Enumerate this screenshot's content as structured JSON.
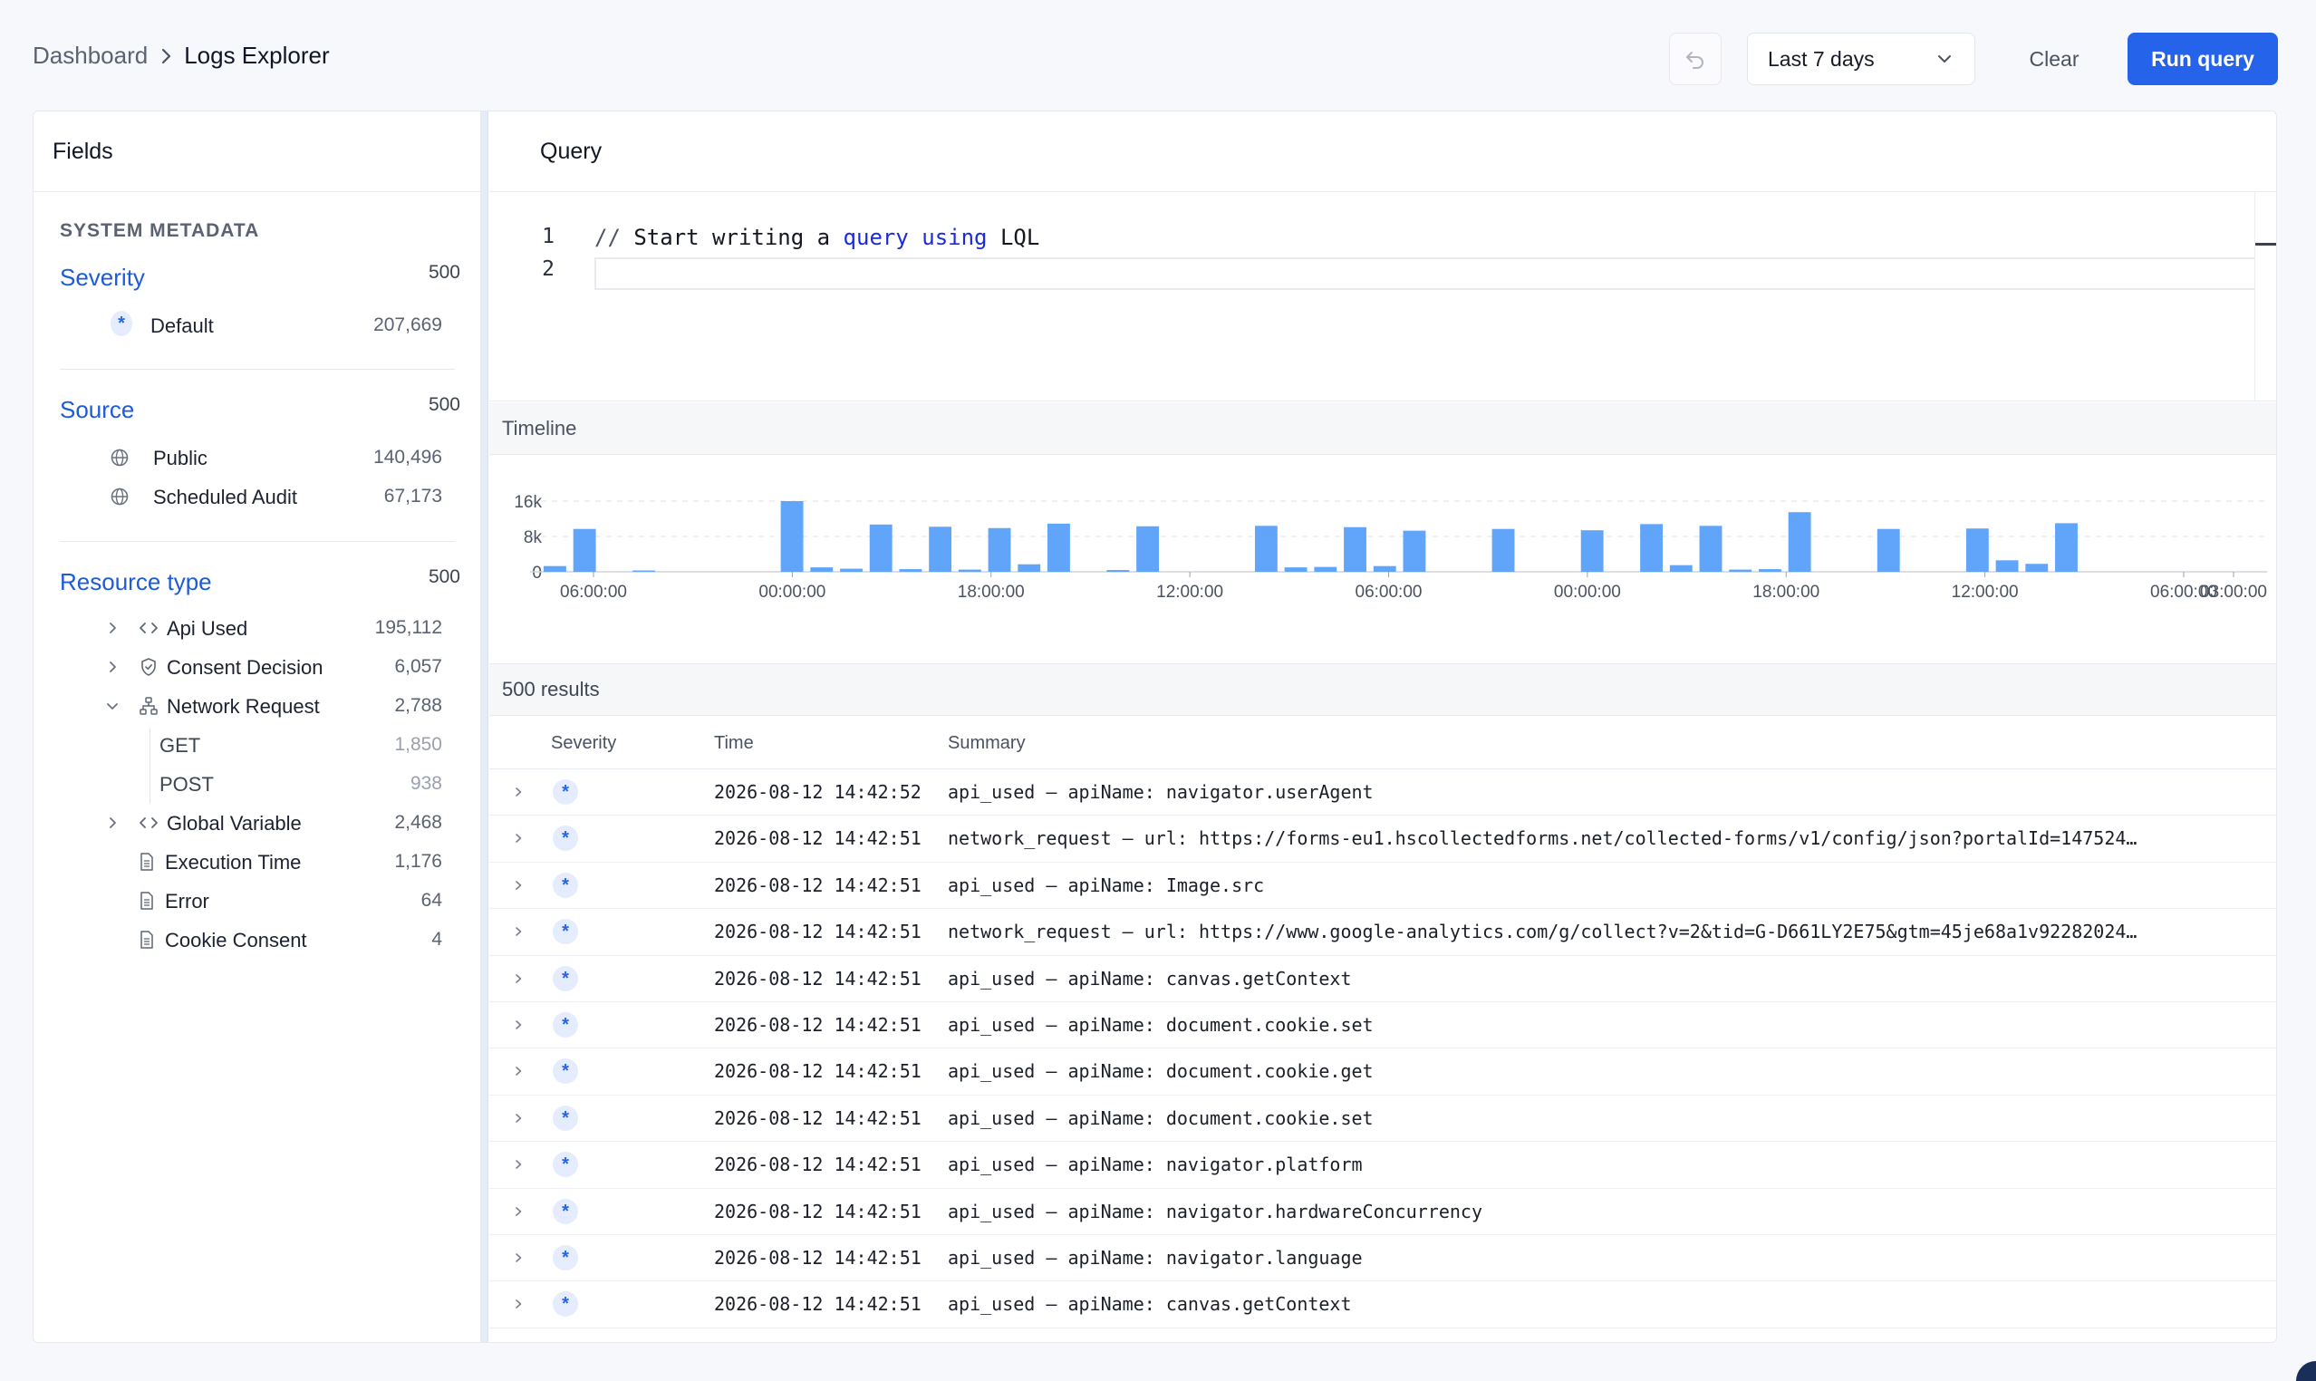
{
  "breadcrumb": {
    "parent": "Dashboard",
    "current": "Logs Explorer"
  },
  "toolbar": {
    "undo_icon": "undo-icon",
    "time_range": "Last 7 days",
    "clear_label": "Clear",
    "run_label": "Run query",
    "accent_color": "#2563eb"
  },
  "fields": {
    "title": "Fields",
    "section_title": "SYSTEM METADATA",
    "severity": {
      "label": "Severity",
      "count": "500",
      "items": [
        {
          "label": "Default",
          "count": "207,669",
          "icon": "asterisk-icon"
        }
      ]
    },
    "source": {
      "label": "Source",
      "count": "500",
      "items": [
        {
          "label": "Public",
          "count": "140,496",
          "icon": "globe-icon"
        },
        {
          "label": "Scheduled Audit",
          "count": "67,173",
          "icon": "globe-icon"
        }
      ]
    },
    "resource_type": {
      "label": "Resource type",
      "count": "500",
      "items": [
        {
          "label": "Api Used",
          "count": "195,112",
          "icon": "code-icon",
          "expandable": true
        },
        {
          "label": "Consent Decision",
          "count": "6,057",
          "icon": "shield-icon",
          "expandable": true
        },
        {
          "label": "Network Request",
          "count": "2,788",
          "icon": "network-icon",
          "expanded": true,
          "children": [
            {
              "label": "GET",
              "count": "1,850"
            },
            {
              "label": "POST",
              "count": "938"
            }
          ]
        },
        {
          "label": "Global Variable",
          "count": "2,468",
          "icon": "code-icon",
          "expandable": true
        },
        {
          "label": "Execution Time",
          "count": "1,176",
          "icon": "document-icon"
        },
        {
          "label": "Error",
          "count": "64",
          "icon": "document-icon"
        },
        {
          "label": "Cookie Consent",
          "count": "4",
          "icon": "document-icon"
        }
      ]
    }
  },
  "query": {
    "title": "Query",
    "line_numbers": [
      "1",
      "2"
    ],
    "line1": {
      "comment": "//",
      "t1": " Start writing a ",
      "kw1": "query",
      "t2": " ",
      "kw2": "using",
      "t3": " LQL"
    }
  },
  "timeline": {
    "title": "Timeline"
  },
  "chart_data": {
    "type": "bar",
    "title": "Timeline",
    "ylim": [
      0,
      16000
    ],
    "y_ticks": [
      "0",
      "8k",
      "16k"
    ],
    "x_tick_labels": [
      "06:00:00",
      "00:00:00",
      "18:00:00",
      "12:00:00",
      "06:00:00",
      "00:00:00",
      "18:00:00",
      "12:00:00",
      "06:00:00",
      "03:00:00"
    ],
    "bar_color": "#60a5fa",
    "grid": true,
    "values": [
      1300,
      9700,
      0,
      300,
      0,
      0,
      0,
      0,
      16000,
      1000,
      700,
      10700,
      600,
      10200,
      500,
      9900,
      1700,
      10900,
      0,
      400,
      10300,
      0,
      0,
      0,
      10400,
      1000,
      1100,
      10100,
      1300,
      9300,
      0,
      0,
      9700,
      0,
      0,
      9400,
      0,
      10800,
      1500,
      10400,
      500,
      600,
      13500,
      0,
      0,
      9700,
      0,
      0,
      9800,
      2600,
      1800,
      11000,
      0,
      0,
      0,
      0,
      0,
      0
    ]
  },
  "results": {
    "count_label": "500 results",
    "columns": {
      "severity": "Severity",
      "time": "Time",
      "summary": "Summary"
    },
    "rows": [
      {
        "time": "2026-08-12 14:42:52",
        "summary": "api_used – apiName: navigator.userAgent"
      },
      {
        "time": "2026-08-12 14:42:51",
        "summary": "network_request – url: https://forms-eu1.hscollectedforms.net/collected-forms/v1/config/json?portalId=147524…"
      },
      {
        "time": "2026-08-12 14:42:51",
        "summary": "api_used – apiName: Image.src"
      },
      {
        "time": "2026-08-12 14:42:51",
        "summary": "network_request – url: https://www.google-analytics.com/g/collect?v=2&tid=G-D661LY2E75&gtm=45je68a1v92282024…"
      },
      {
        "time": "2026-08-12 14:42:51",
        "summary": "api_used – apiName: canvas.getContext"
      },
      {
        "time": "2026-08-12 14:42:51",
        "summary": "api_used – apiName: document.cookie.set"
      },
      {
        "time": "2026-08-12 14:42:51",
        "summary": "api_used – apiName: document.cookie.get"
      },
      {
        "time": "2026-08-12 14:42:51",
        "summary": "api_used – apiName: document.cookie.set"
      },
      {
        "time": "2026-08-12 14:42:51",
        "summary": "api_used – apiName: navigator.platform"
      },
      {
        "time": "2026-08-12 14:42:51",
        "summary": "api_used – apiName: navigator.hardwareConcurrency"
      },
      {
        "time": "2026-08-12 14:42:51",
        "summary": "api_used – apiName: navigator.language"
      },
      {
        "time": "2026-08-12 14:42:51",
        "summary": "api_used – apiName: canvas.getContext"
      }
    ]
  }
}
